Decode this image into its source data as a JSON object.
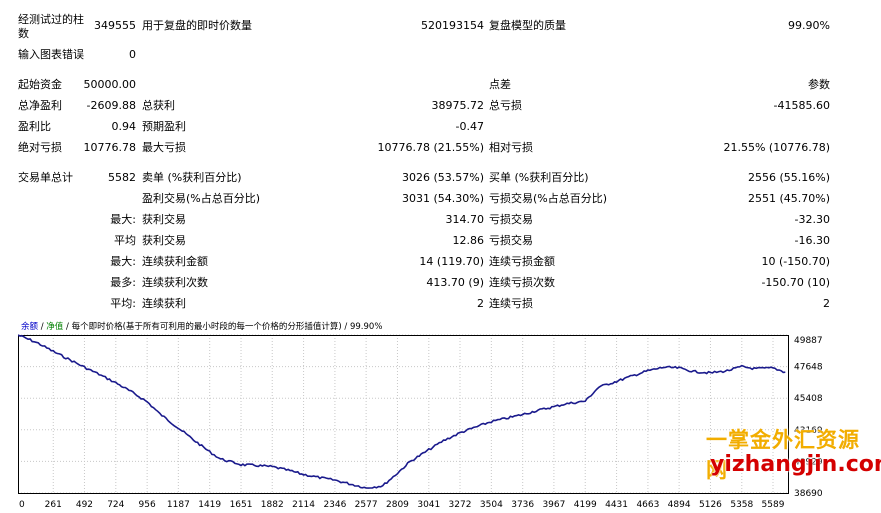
{
  "header": {
    "bars_label": "经测试过的柱数",
    "bars_value": "349555",
    "ticks_label": "用于复盘的即时价数量",
    "ticks_value": "520193154",
    "quality_label": "复盘模型的质量",
    "quality_value": "99.90%",
    "errors_label": "输入图表错误",
    "errors_value": "0"
  },
  "stats": {
    "initial_deposit_label": "起始资金",
    "initial_deposit_value": "50000.00",
    "spread_label": "点差",
    "spread_value": "参数",
    "net_profit_label": "总净盈利",
    "net_profit_value": "-2609.88",
    "gross_profit_label": "总获利",
    "gross_profit_value": "38975.72",
    "gross_loss_label": "总亏损",
    "gross_loss_value": "-41585.60",
    "profit_factor_label": "盈利比",
    "profit_factor_value": "0.94",
    "expected_payoff_label": "预期盈利",
    "expected_payoff_value": "-0.47",
    "abs_drawdown_label": "绝对亏损",
    "abs_drawdown_value": "10776.78",
    "max_drawdown_label": "最大亏损",
    "max_drawdown_value": "10776.78 (21.55%)",
    "rel_drawdown_label": "相对亏损",
    "rel_drawdown_value": "21.55% (10776.78)",
    "total_trades_label": "交易单总计",
    "total_trades_value": "5582",
    "short_label": "卖单 (%获利百分比)",
    "short_value": "3026 (53.57%)",
    "long_label": "买单 (%获利百分比)",
    "long_value": "2556 (55.16%)",
    "profit_trades_label": "盈利交易(%占总百分比)",
    "profit_trades_value": "3031 (54.30%)",
    "loss_trades_label": "亏损交易(%占总百分比)",
    "loss_trades_value": "2551 (45.70%)",
    "largest_label": "最大:",
    "largest_profit_label": "获利交易",
    "largest_profit_value": "314.70",
    "largest_loss_label": "亏损交易",
    "largest_loss_value": "-32.30",
    "average_label": "平均",
    "average_profit_label": "获利交易",
    "average_profit_value": "12.86",
    "average_loss_label": "亏损交易",
    "average_loss_value": "-16.30",
    "max_consec_label": "最大:",
    "max_consec_wins_label": "连续获利金额",
    "max_consec_wins_value": "14 (119.70)",
    "max_consec_losses_label": "连续亏损金额",
    "max_consec_losses_value": "10 (-150.70)",
    "maximal_label": "最多:",
    "maximal_profit_label": "连续获利次数",
    "maximal_profit_value": "413.70 (9)",
    "maximal_loss_label": "连续亏损次数",
    "maximal_loss_value": "-150.70 (10)",
    "avg_consec_label": "平均:",
    "avg_consec_wins_label": "连续获利",
    "avg_consec_wins_value": "2",
    "avg_consec_losses_label": "连续亏损",
    "avg_consec_losses_value": "2"
  },
  "chart_legend": {
    "balance": "余额",
    "sep1": " / ",
    "equity": "净值",
    "rest": " / 每个即时价格(基于所有可利用的最小时段的每一个价格的分形插值计算) / 99.90%"
  },
  "watermark": {
    "line1": "一掌金外汇资源网",
    "line2": "yizhangjin.com"
  },
  "colors": {
    "line": "#1a1a8c",
    "grid": "#c8c8c8",
    "legend_balance": "#0000c8",
    "legend_equity": "#008000"
  },
  "chart_data": {
    "type": "line",
    "x_ticks": [
      0,
      261,
      492,
      724,
      956,
      1187,
      1419,
      1651,
      1882,
      2114,
      2346,
      2577,
      2809,
      3041,
      3272,
      3504,
      3736,
      3967,
      4199,
      4431,
      4663,
      4894,
      5126,
      5358,
      5589
    ],
    "y_ticks": [
      49887,
      47648,
      45408,
      43169,
      40929,
      38690
    ],
    "ylim": [
      38690,
      49887
    ],
    "xlim": [
      0,
      5700
    ],
    "series": [
      {
        "name": "余额",
        "x": [
          0,
          150,
          261,
          400,
          492,
          600,
          724,
          850,
          956,
          1050,
          1187,
          1300,
          1419,
          1500,
          1651,
          1750,
          1882,
          2000,
          2114,
          2250,
          2346,
          2450,
          2577,
          2700,
          2809,
          2900,
          3041,
          3150,
          3272,
          3400,
          3504,
          3600,
          3736,
          3850,
          3967,
          4050,
          4199,
          4300,
          4431,
          4550,
          4663,
          4780,
          4894,
          5000,
          5126,
          5250,
          5358,
          5450,
          5589,
          5680
        ],
        "y": [
          49887,
          49300,
          48720,
          48050,
          47600,
          47100,
          46500,
          45800,
          45150,
          44300,
          43300,
          42450,
          41600,
          41100,
          40700,
          40650,
          40550,
          40300,
          40000,
          39750,
          39600,
          39350,
          39050,
          39200,
          40100,
          40900,
          41750,
          42400,
          42950,
          43400,
          43750,
          43950,
          44250,
          44550,
          44800,
          45000,
          45200,
          46200,
          46600,
          47000,
          47350,
          47600,
          47550,
          47300,
          47200,
          47350,
          47650,
          47500,
          47550,
          47250
        ]
      }
    ]
  }
}
